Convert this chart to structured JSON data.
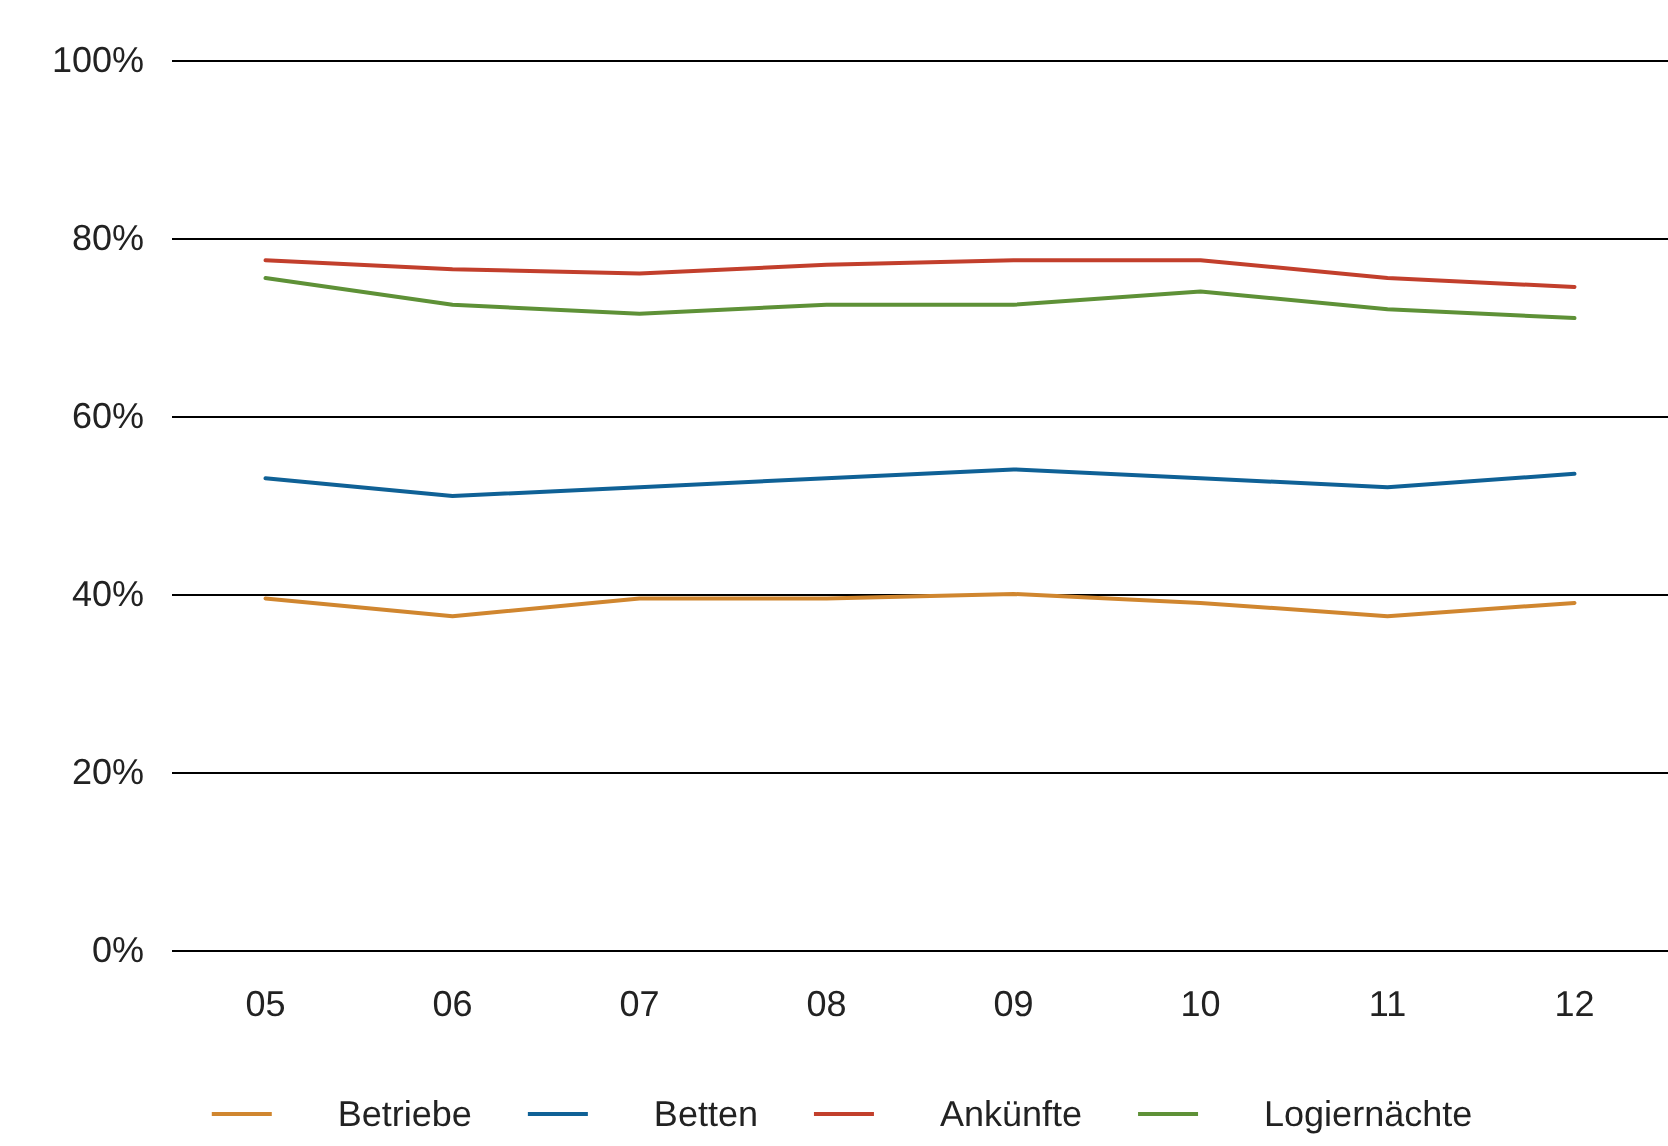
{
  "chart_data": {
    "type": "line",
    "categories": [
      "05",
      "06",
      "07",
      "08",
      "09",
      "10",
      "11",
      "12"
    ],
    "series": [
      {
        "name": "Betriebe",
        "color": "#d0862f",
        "values": [
          39.5,
          37.5,
          39.5,
          39.5,
          40,
          39,
          37.5,
          39
        ]
      },
      {
        "name": "Betten",
        "color": "#0f6196",
        "values": [
          53,
          51,
          52,
          53,
          54,
          53,
          52,
          53.5
        ]
      },
      {
        "name": "Ankünfte",
        "color": "#c23f2c",
        "values": [
          77.5,
          76.5,
          76,
          77,
          77.5,
          77.5,
          75.5,
          74.5
        ]
      },
      {
        "name": "Logiernächte",
        "color": "#5e9137",
        "values": [
          75.5,
          72.5,
          71.5,
          72.5,
          72.5,
          74,
          72,
          71
        ]
      }
    ],
    "ylim": [
      0,
      100
    ],
    "yticks": [
      {
        "value": 0,
        "label": "0%"
      },
      {
        "value": 20,
        "label": "20%"
      },
      {
        "value": 40,
        "label": "40%"
      },
      {
        "value": 60,
        "label": "60%"
      },
      {
        "value": 80,
        "label": "80%"
      },
      {
        "value": 100,
        "label": "100%"
      }
    ],
    "grid": "y",
    "legend": "bottom",
    "marker": "none",
    "line_style": "solid"
  }
}
